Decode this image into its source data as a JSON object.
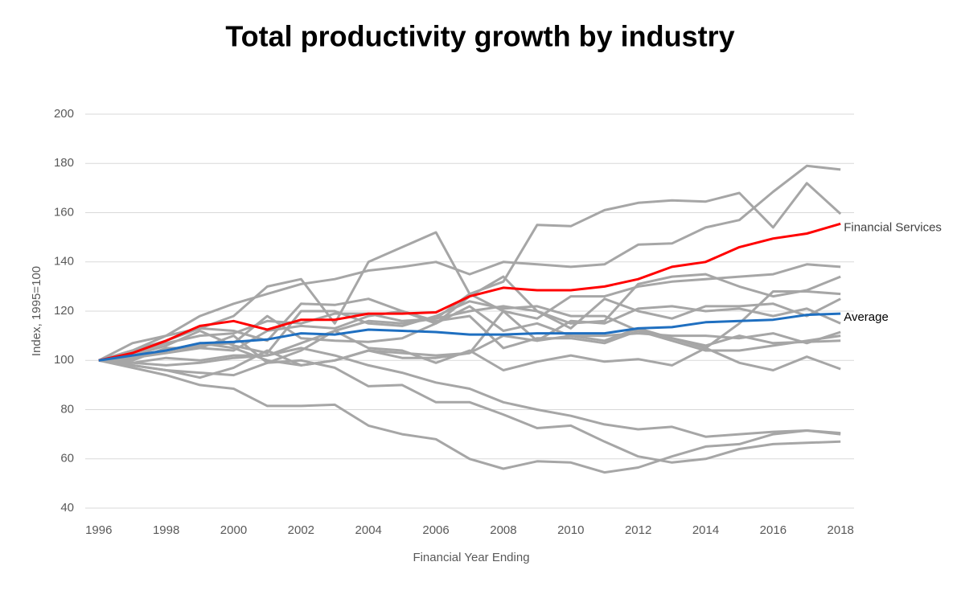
{
  "chart_data": {
    "type": "line",
    "title": "Total productivity growth by industry",
    "xlabel": "Financial Year Ending",
    "ylabel": "Index, 1995=100",
    "x": [
      1996,
      1997,
      1998,
      1999,
      2000,
      2001,
      2002,
      2003,
      2004,
      2005,
      2006,
      2007,
      2008,
      2009,
      2010,
      2011,
      2012,
      2013,
      2014,
      2015,
      2016,
      2017,
      2018
    ],
    "xlim": [
      1995.6,
      2018.4
    ],
    "xticks": [
      1996,
      1998,
      2000,
      2002,
      2004,
      2006,
      2008,
      2010,
      2012,
      2014,
      2016,
      2018
    ],
    "ylim": [
      40,
      200
    ],
    "yticks": [
      40,
      60,
      80,
      100,
      120,
      140,
      160,
      180,
      200
    ],
    "grid": true,
    "series": [
      {
        "color": "#a6a6a6",
        "values": [
          100,
          104,
          110,
          113,
          118,
          130,
          133,
          115,
          140,
          146,
          152,
          127,
          132,
          155,
          154.5,
          161,
          164,
          165,
          164.5,
          168,
          154,
          172,
          159.5
        ]
      },
      {
        "color": "#a6a6a6",
        "values": [
          100,
          107,
          110,
          118,
          123,
          127,
          131,
          133,
          136.5,
          138,
          140,
          135,
          140,
          139,
          138,
          139,
          147,
          147.5,
          154,
          157,
          168.5,
          179,
          177.5
        ]
      },
      {
        "color": "#a6a6a6",
        "values": [
          100,
          104,
          108,
          113,
          112,
          108,
          123,
          122.5,
          125,
          120,
          115,
          126,
          134,
          120,
          115,
          116,
          131,
          134,
          135,
          130,
          126,
          128.5,
          134
        ]
      },
      {
        "color": "#a6a6a6",
        "values": [
          100,
          103,
          107,
          110,
          111,
          116,
          115,
          119,
          119,
          116,
          117,
          127,
          120,
          117,
          126,
          126,
          130,
          132,
          133,
          134,
          135,
          139,
          138
        ]
      },
      {
        "color": "#a6a6a6",
        "values": [
          100,
          102,
          106,
          112,
          106,
          103,
          120,
          120,
          115,
          114,
          118,
          124,
          121,
          122,
          118,
          118,
          112,
          109,
          105,
          115,
          128,
          128,
          127
        ]
      },
      {
        "color": "#a6a6a6",
        "values": [
          100,
          101,
          104,
          106,
          107,
          118,
          109,
          108,
          107.5,
          109,
          115,
          122,
          112,
          115,
          110,
          108,
          113,
          109,
          106,
          110,
          107,
          107.5,
          108
        ]
      },
      {
        "color": "#a6a6a6",
        "values": [
          100,
          101,
          103,
          105,
          110,
          99,
          104,
          112,
          116,
          115,
          117,
          120,
          122,
          120,
          113,
          125,
          120,
          117,
          122,
          122,
          123,
          118,
          125
        ]
      },
      {
        "color": "#a6a6a6",
        "values": [
          100,
          99,
          101,
          100,
          102,
          102,
          107,
          112,
          105,
          104,
          99,
          104,
          96,
          99.5,
          102,
          99.5,
          100.5,
          98,
          105,
          99,
          96,
          101.5,
          96.5
        ]
      },
      {
        "color": "#a6a6a6",
        "values": [
          100,
          98,
          96,
          93,
          97,
          104,
          98,
          100,
          104,
          101,
          101,
          103,
          110,
          108,
          110,
          110,
          111,
          110,
          110,
          109,
          111,
          107,
          111.5
        ]
      },
      {
        "color": "#a6a6a6",
        "values": [
          100,
          97,
          94,
          90,
          88.5,
          81.5,
          81.5,
          82,
          73.5,
          70,
          68,
          60,
          56,
          59,
          58.5,
          54.5,
          56.5,
          61,
          65,
          66,
          70,
          71.5,
          70.5
        ]
      },
      {
        "color": "#a6a6a6",
        "values": [
          100,
          98,
          96,
          95,
          94,
          99,
          100,
          97,
          89.5,
          90,
          83,
          83,
          78,
          72.5,
          73.5,
          67,
          61,
          58.5,
          60,
          64,
          66,
          66.5,
          67
        ]
      },
      {
        "color": "#a6a6a6",
        "values": [
          100,
          99,
          98,
          99,
          101,
          102,
          105,
          102,
          98,
          95,
          91,
          88.5,
          83,
          80,
          77.5,
          74,
          72,
          73,
          69,
          70,
          71,
          71.5,
          70
        ]
      },
      {
        "color": "#a6a6a6",
        "values": [
          100,
          102,
          104,
          107,
          105,
          100,
          98,
          100,
          104,
          103,
          102,
          103,
          120,
          108,
          116,
          115,
          121,
          122,
          120,
          121,
          118,
          121,
          115
        ]
      },
      {
        "color": "#a6a6a6",
        "values": [
          100,
          100,
          105,
          105,
          104,
          112,
          114,
          113,
          118,
          120,
          116,
          118,
          105,
          109,
          109,
          107,
          112,
          108,
          104,
          104,
          106,
          108,
          110
        ]
      },
      {
        "name": "Financial Services",
        "color": "#ff0000",
        "values": [
          100,
          103,
          108,
          114,
          116,
          112.5,
          116.5,
          116.5,
          119,
          119,
          119.5,
          126,
          129.5,
          128.5,
          128.5,
          130,
          133,
          138,
          140,
          146,
          149.5,
          151.5,
          155.5
        ]
      },
      {
        "name": "Average",
        "color": "#1f6fc0",
        "values": [
          100,
          102,
          104,
          107,
          107.5,
          108.5,
          111,
          110.5,
          112.5,
          112,
          111.5,
          110.5,
          110.5,
          111,
          111,
          111,
          113,
          113.5,
          115.5,
          116,
          116.5,
          118.5,
          119
        ]
      }
    ]
  }
}
